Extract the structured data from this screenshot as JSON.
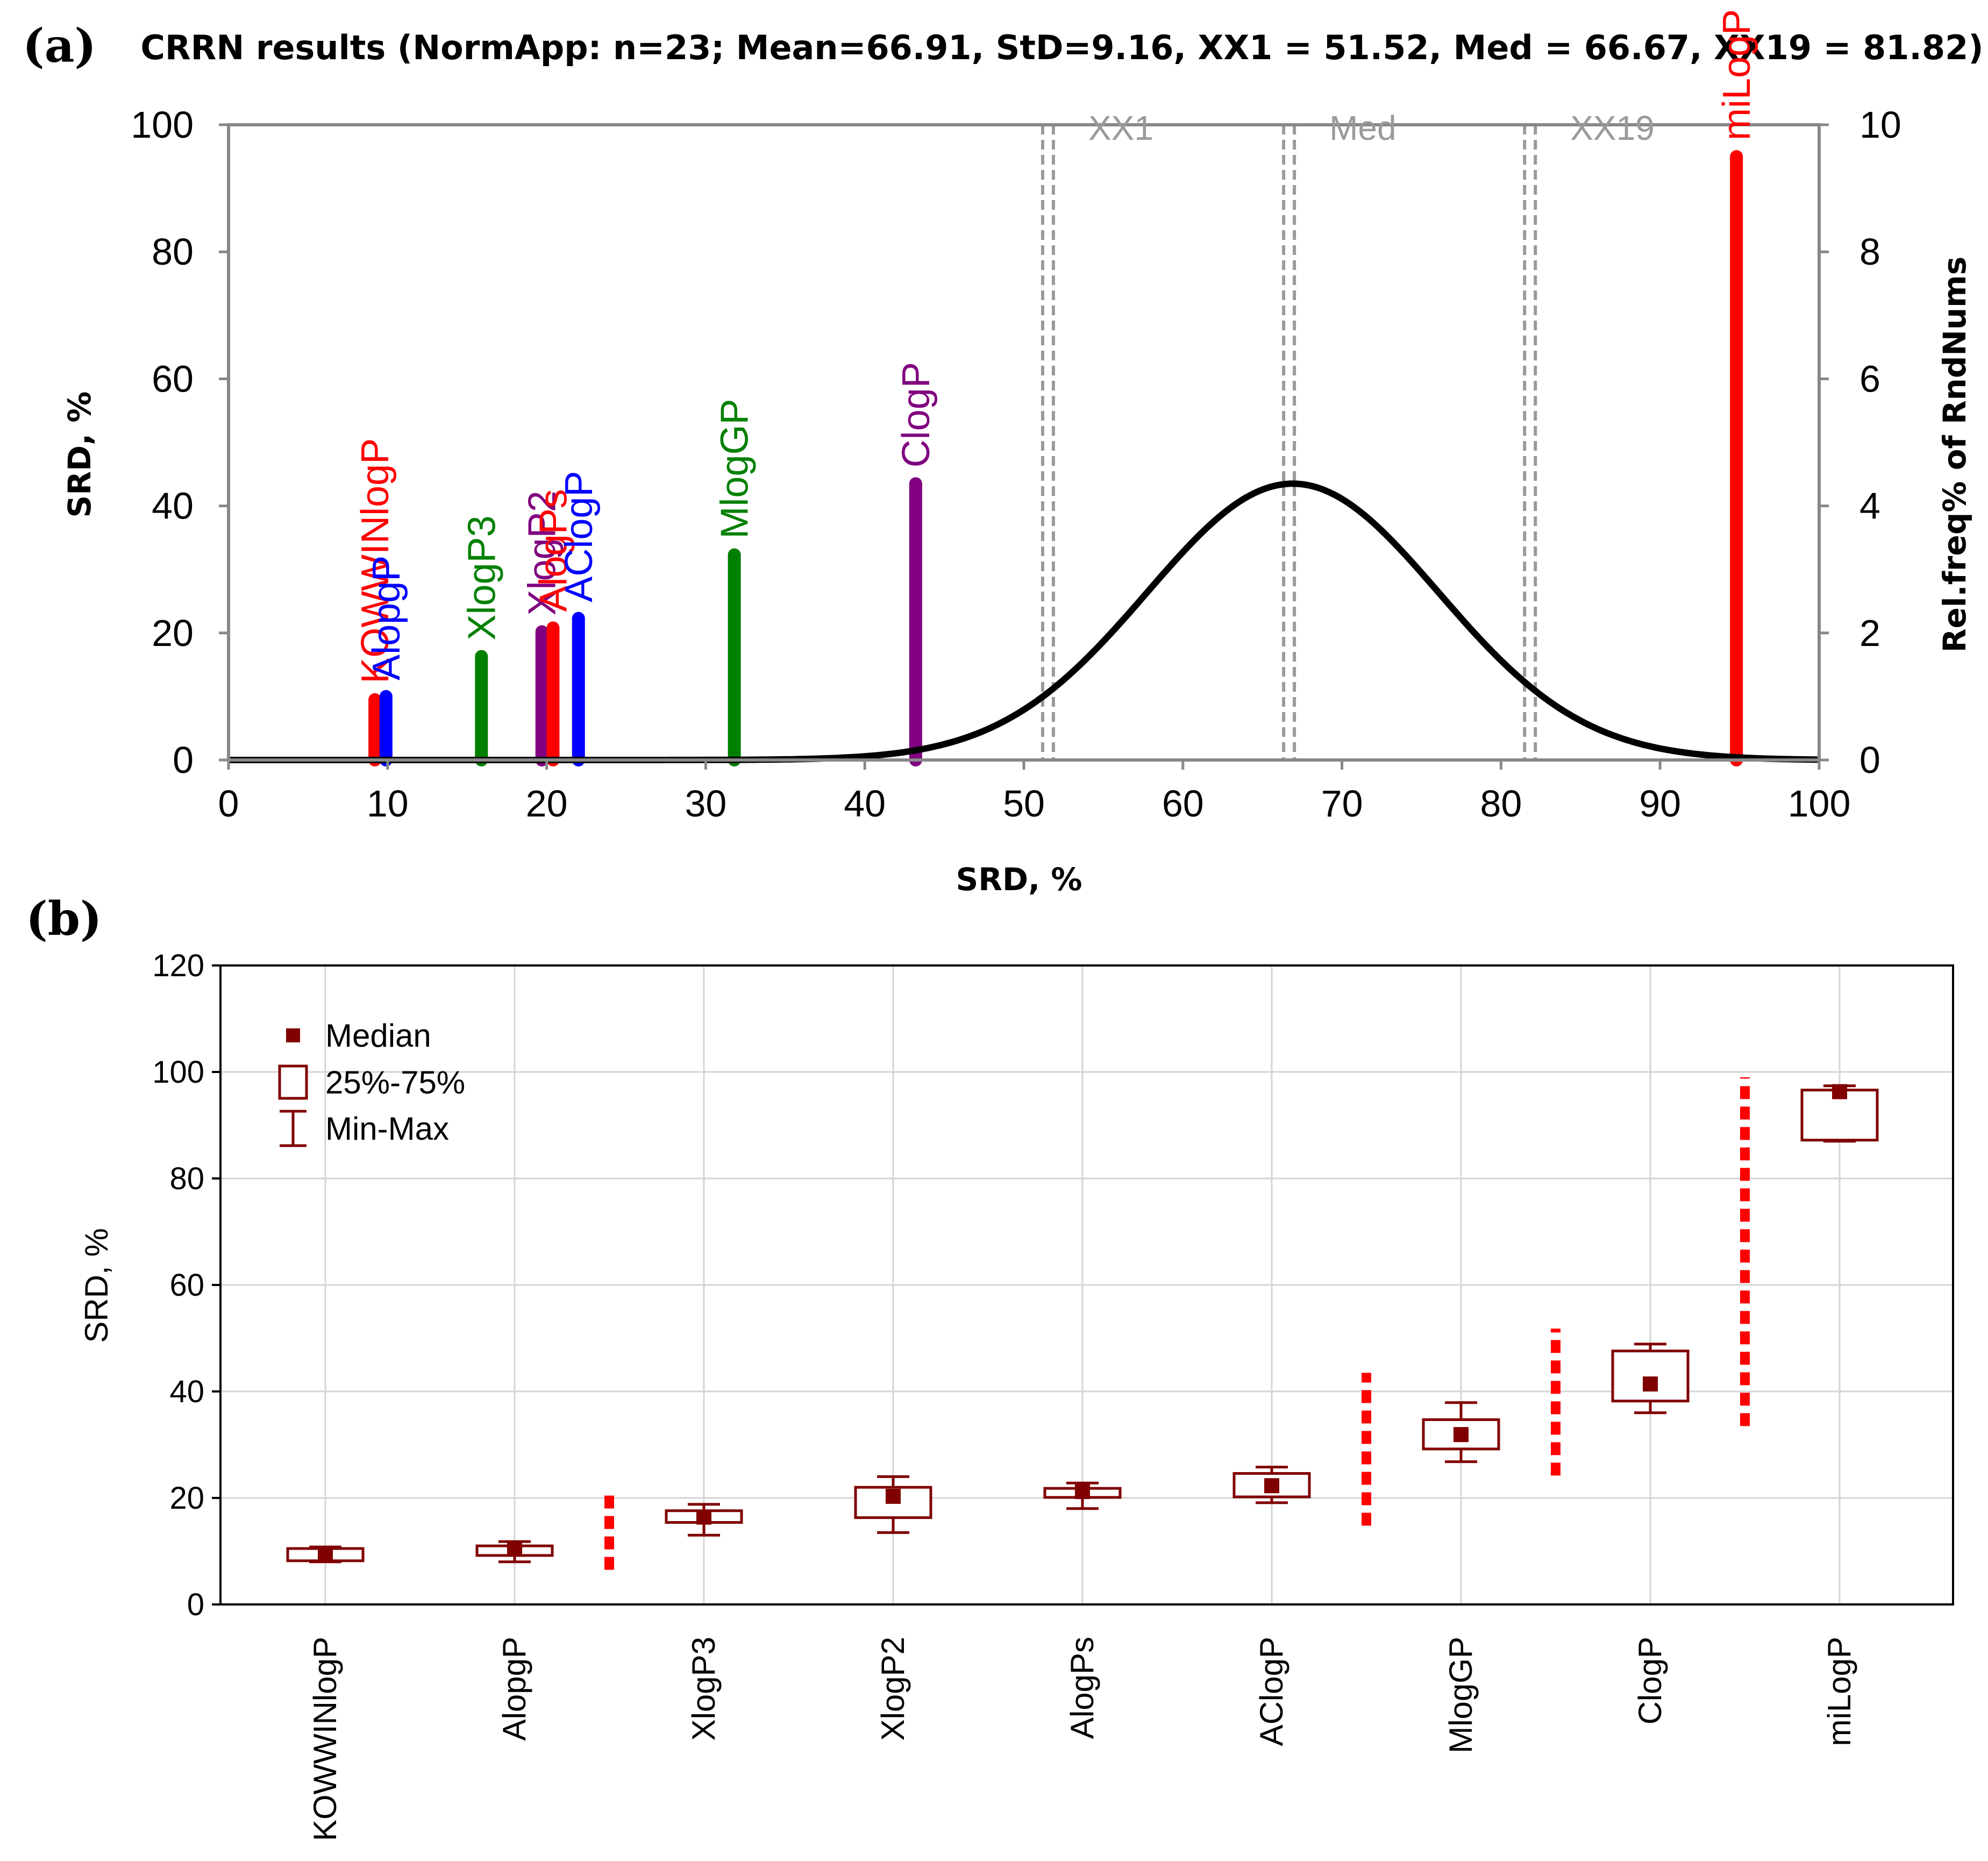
{
  "panel_a_label": "(a)",
  "panel_b_label": "(b)",
  "chart_data": [
    {
      "type": "bar",
      "title": "CRRN results (NormApp: n=23; Mean=66.91, StD=9.16, XX1 = 51.52, Med = 66.67, XX19 = 81.82)",
      "xlabel": "SRD, %",
      "ylabel": "SRD, %",
      "y2label": "Rel.freq% of RndNums",
      "xlim": [
        0,
        100
      ],
      "ylim": [
        0,
        100
      ],
      "y2lim": [
        0,
        10
      ],
      "x_ticks": [
        0,
        10,
        20,
        30,
        40,
        50,
        60,
        70,
        80,
        90,
        100
      ],
      "y_ticks": [
        0,
        20,
        40,
        60,
        80,
        100
      ],
      "y2_ticks": [
        0,
        2,
        4,
        6,
        8,
        10
      ],
      "bars": [
        {
          "name": "KOWWINlogP",
          "x": 9.2,
          "value": 9.5,
          "color": "#ff0000"
        },
        {
          "name": "AlopgP",
          "x": 9.9,
          "value": 10,
          "color": "#0000ff"
        },
        {
          "name": "XlogP3",
          "x": 15.9,
          "value": 16.3,
          "color": "#008000"
        },
        {
          "name": "XlogP2",
          "x": 19.7,
          "value": 20.2,
          "color": "#800080"
        },
        {
          "name": "AlogPs",
          "x": 20.4,
          "value": 20.8,
          "color": "#ff0000"
        },
        {
          "name": "AClogP",
          "x": 22.0,
          "value": 22.3,
          "color": "#0000ff"
        },
        {
          "name": "MlogGP",
          "x": 31.8,
          "value": 32.3,
          "color": "#008000"
        },
        {
          "name": "ClogP",
          "x": 43.2,
          "value": 43.5,
          "color": "#800080"
        },
        {
          "name": "miLogP",
          "x": 94.8,
          "value": 95,
          "color": "#ff0000"
        }
      ],
      "normal_curve": {
        "mean": 66.91,
        "std": 9.16,
        "peak_freq": 4.35,
        "color": "#000000"
      },
      "vertical_lines": [
        {
          "name": "XX1",
          "x": 51.52
        },
        {
          "name": "Med",
          "x": 66.67
        },
        {
          "name": "XX19",
          "x": 81.82
        }
      ]
    },
    {
      "type": "box",
      "xlabel": "",
      "ylabel": "SRD, %",
      "ylim": [
        0,
        120
      ],
      "y_ticks": [
        0,
        20,
        40,
        60,
        80,
        100,
        120
      ],
      "categories": [
        "KOWWINlogP",
        "AlopgP",
        "XlogP3",
        "XlogP2",
        "AlogPs",
        "AClogP",
        "MlogGP",
        "ClogP",
        "miLogP"
      ],
      "boxes": [
        {
          "min": 8,
          "q1": 8.2,
          "median": 9.2,
          "q3": 10.5,
          "max": 10.8
        },
        {
          "min": 8,
          "q1": 9.2,
          "median": 10.4,
          "q3": 11,
          "max": 11.8
        },
        {
          "min": 13,
          "q1": 15.4,
          "median": 16.4,
          "q3": 17.6,
          "max": 18.8
        },
        {
          "min": 13.5,
          "q1": 16.3,
          "median": 20.3,
          "q3": 22,
          "max": 24
        },
        {
          "min": 18,
          "q1": 20.1,
          "median": 21.2,
          "q3": 21.8,
          "max": 22.8
        },
        {
          "min": 19.1,
          "q1": 20.2,
          "median": 22.3,
          "q3": 24.6,
          "max": 25.8
        },
        {
          "min": 26.8,
          "q1": 29.2,
          "median": 31.9,
          "q3": 34.7,
          "max": 37.9
        },
        {
          "min": 36,
          "q1": 38.2,
          "median": 41.4,
          "q3": 47.6,
          "max": 48.9
        },
        {
          "min": 87,
          "q1": 87.2,
          "median": 96.3,
          "q3": 96.6,
          "max": 97.4
        }
      ],
      "separators": [
        {
          "after_index": 1,
          "ymin": 6.5,
          "ymax": 21.5
        },
        {
          "after_index": 5,
          "ymin": 14.8,
          "ymax": 43.5
        },
        {
          "after_index": 6,
          "ymin": 24.2,
          "ymax": 51.8
        },
        {
          "after_index": 7,
          "ymin": 33.5,
          "ymax": 99
        }
      ],
      "legend": [
        {
          "label": "Median"
        },
        {
          "label": "25%-75%"
        },
        {
          "label": "Min-Max"
        }
      ],
      "legend_position": "top-left",
      "color": "#800000",
      "separator_color": "#ff0000",
      "grid": true
    }
  ]
}
